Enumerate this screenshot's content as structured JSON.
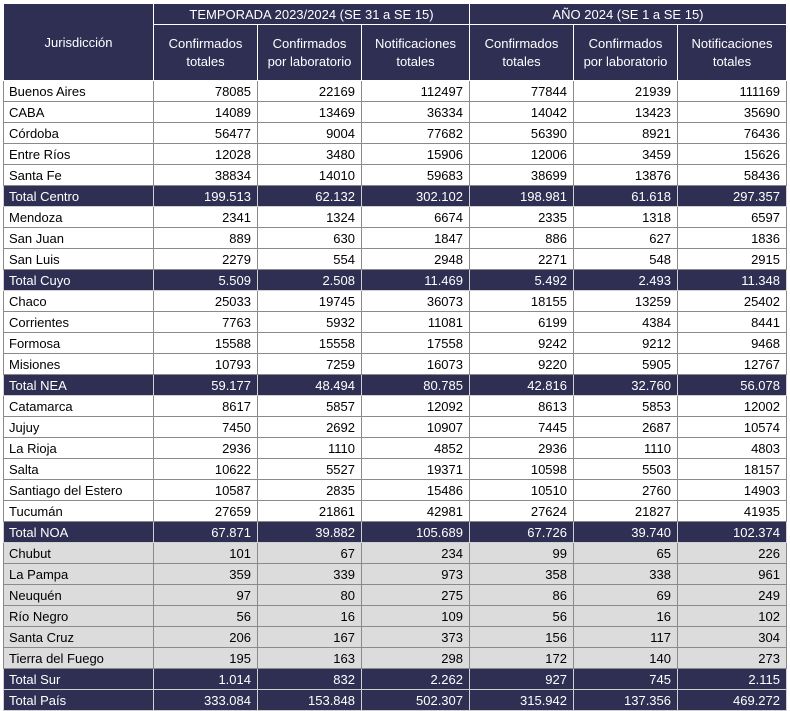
{
  "header": {
    "jurisdiction_label": "Jurisdicción",
    "group1_title": "TEMPORADA 2023/2024 (SE 31 a SE 15)",
    "group2_title": "AÑO 2024 (SE 1 a SE 15)",
    "columns": [
      "Confirmados totales",
      "Confirmados por laboratorio",
      "Notificaciones totales",
      "Confirmados totales",
      "Confirmados por laboratorio",
      "Notificaciones totales"
    ]
  },
  "rows": [
    {
      "name": "Buenos Aires",
      "type": "plain",
      "values": [
        "78085",
        "22169",
        "112497",
        "77844",
        "21939",
        "111169"
      ]
    },
    {
      "name": "CABA",
      "type": "plain",
      "values": [
        "14089",
        "13469",
        "36334",
        "14042",
        "13423",
        "35690"
      ]
    },
    {
      "name": "Córdoba",
      "type": "plain",
      "values": [
        "56477",
        "9004",
        "77682",
        "56390",
        "8921",
        "76436"
      ]
    },
    {
      "name": "Entre Ríos",
      "type": "plain",
      "values": [
        "12028",
        "3480",
        "15906",
        "12006",
        "3459",
        "15626"
      ]
    },
    {
      "name": "Santa Fe",
      "type": "plain",
      "values": [
        "38834",
        "14010",
        "59683",
        "38699",
        "13876",
        "58436"
      ]
    },
    {
      "name": "Total Centro",
      "type": "total",
      "values": [
        "199.513",
        "62.132",
        "302.102",
        "198.981",
        "61.618",
        "297.357"
      ]
    },
    {
      "name": "Mendoza",
      "type": "plain",
      "values": [
        "2341",
        "1324",
        "6674",
        "2335",
        "1318",
        "6597"
      ]
    },
    {
      "name": "San Juan",
      "type": "plain",
      "values": [
        "889",
        "630",
        "1847",
        "886",
        "627",
        "1836"
      ]
    },
    {
      "name": "San Luis",
      "type": "plain",
      "values": [
        "2279",
        "554",
        "2948",
        "2271",
        "548",
        "2915"
      ]
    },
    {
      "name": "Total Cuyo",
      "type": "total",
      "values": [
        "5.509",
        "2.508",
        "11.469",
        "5.492",
        "2.493",
        "11.348"
      ]
    },
    {
      "name": "Chaco",
      "type": "plain",
      "values": [
        "25033",
        "19745",
        "36073",
        "18155",
        "13259",
        "25402"
      ]
    },
    {
      "name": "Corrientes",
      "type": "plain",
      "values": [
        "7763",
        "5932",
        "11081",
        "6199",
        "4384",
        "8441"
      ]
    },
    {
      "name": "Formosa",
      "type": "plain",
      "values": [
        "15588",
        "15558",
        "17558",
        "9242",
        "9212",
        "9468"
      ]
    },
    {
      "name": "Misiones",
      "type": "plain",
      "values": [
        "10793",
        "7259",
        "16073",
        "9220",
        "5905",
        "12767"
      ]
    },
    {
      "name": "Total NEA",
      "type": "total",
      "values": [
        "59.177",
        "48.494",
        "80.785",
        "42.816",
        "32.760",
        "56.078"
      ]
    },
    {
      "name": "Catamarca",
      "type": "plain",
      "values": [
        "8617",
        "5857",
        "12092",
        "8613",
        "5853",
        "12002"
      ]
    },
    {
      "name": "Jujuy",
      "type": "plain",
      "values": [
        "7450",
        "2692",
        "10907",
        "7445",
        "2687",
        "10574"
      ]
    },
    {
      "name": "La Rioja",
      "type": "plain",
      "values": [
        "2936",
        "1110",
        "4852",
        "2936",
        "1110",
        "4803"
      ]
    },
    {
      "name": "Salta",
      "type": "plain",
      "values": [
        "10622",
        "5527",
        "19371",
        "10598",
        "5503",
        "18157"
      ]
    },
    {
      "name": "Santiago del Estero",
      "type": "plain",
      "values": [
        "10587",
        "2835",
        "15486",
        "10510",
        "2760",
        "14903"
      ]
    },
    {
      "name": "Tucumán",
      "type": "plain",
      "values": [
        "27659",
        "21861",
        "42981",
        "27624",
        "21827",
        "41935"
      ]
    },
    {
      "name": "Total NOA",
      "type": "total",
      "values": [
        "67.871",
        "39.882",
        "105.689",
        "67.726",
        "39.740",
        "102.374"
      ]
    },
    {
      "name": "Chubut",
      "type": "sur",
      "values": [
        "101",
        "67",
        "234",
        "99",
        "65",
        "226"
      ]
    },
    {
      "name": "La Pampa",
      "type": "sur",
      "values": [
        "359",
        "339",
        "973",
        "358",
        "338",
        "961"
      ]
    },
    {
      "name": "Neuquén",
      "type": "sur",
      "values": [
        "97",
        "80",
        "275",
        "86",
        "69",
        "249"
      ]
    },
    {
      "name": "Río Negro",
      "type": "sur",
      "values": [
        "56",
        "16",
        "109",
        "56",
        "16",
        "102"
      ]
    },
    {
      "name": "Santa Cruz",
      "type": "sur",
      "values": [
        "206",
        "167",
        "373",
        "156",
        "117",
        "304"
      ]
    },
    {
      "name": "Tierra del Fuego",
      "type": "sur",
      "values": [
        "195",
        "163",
        "298",
        "172",
        "140",
        "273"
      ]
    },
    {
      "name": "Total Sur",
      "type": "total",
      "values": [
        "1.014",
        "832",
        "2.262",
        "927",
        "745",
        "2.115"
      ]
    },
    {
      "name": "Total País",
      "type": "total",
      "values": [
        "333.084",
        "153.848",
        "502.307",
        "315.942",
        "137.356",
        "469.272"
      ]
    }
  ],
  "colors": {
    "header_bg": "#2f2f54",
    "total_bg": "#2f2f54",
    "sur_bg": "#dcdcdc"
  }
}
